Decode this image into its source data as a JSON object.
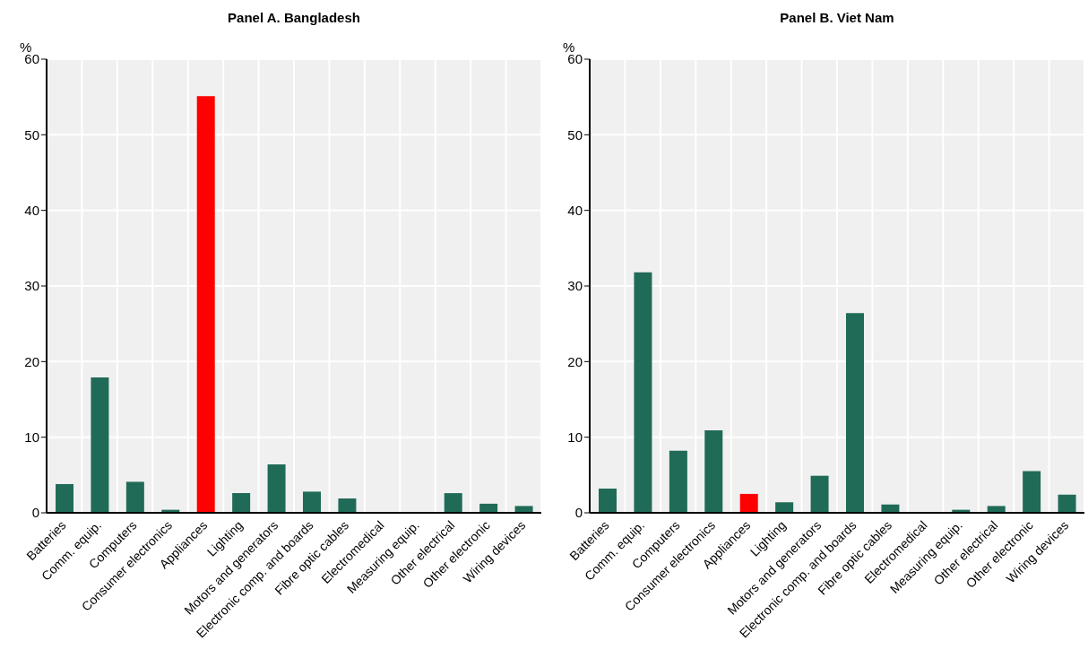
{
  "chart_data": [
    {
      "type": "bar",
      "title": "Panel A. Bangladesh",
      "ylabel": "%",
      "categories": [
        "Batteries",
        "Comm. equip.",
        "Computers",
        "Consumer electronics",
        "Appliances",
        "Lighting",
        "Motors and generators",
        "Electronic comp. and boards",
        "Fibre optic cables",
        "Electromedical",
        "Measuring equip.",
        "Other electrical",
        "Other electronic",
        "Wiring devices"
      ],
      "values": [
        3.8,
        17.9,
        4.1,
        0.4,
        55.1,
        2.6,
        6.4,
        2.8,
        1.9,
        0,
        0,
        2.6,
        1.2,
        0.9
      ],
      "colors": [
        "#206b58",
        "#206b58",
        "#206b58",
        "#206b58",
        "#ff0000",
        "#206b58",
        "#206b58",
        "#206b58",
        "#206b58",
        "#206b58",
        "#206b58",
        "#206b58",
        "#206b58",
        "#206b58"
      ],
      "ylim": [
        0,
        60
      ],
      "yticks": [
        0,
        10,
        20,
        30,
        40,
        50,
        60
      ],
      "grid": true
    },
    {
      "type": "bar",
      "title": "Panel B. Viet Nam",
      "ylabel": "%",
      "categories": [
        "Batteries",
        "Comm. equip.",
        "Computers",
        "Consumer electronics",
        "Appliances",
        "Lighting",
        "Motors and generators",
        "Electronic comp. and boards",
        "Fibre optic cables",
        "Electromedical",
        "Measuring equip.",
        "Other electrical",
        "Other electronic",
        "Wiring devices"
      ],
      "values": [
        3.2,
        31.8,
        8.2,
        10.9,
        2.5,
        1.4,
        4.9,
        26.4,
        1.1,
        0,
        0.4,
        0.9,
        5.5,
        2.4
      ],
      "colors": [
        "#206b58",
        "#206b58",
        "#206b58",
        "#206b58",
        "#ff0000",
        "#206b58",
        "#206b58",
        "#206b58",
        "#206b58",
        "#206b58",
        "#206b58",
        "#206b58",
        "#206b58",
        "#206b58"
      ],
      "ylim": [
        0,
        60
      ],
      "yticks": [
        0,
        10,
        20,
        30,
        40,
        50,
        60
      ],
      "grid": true
    }
  ]
}
